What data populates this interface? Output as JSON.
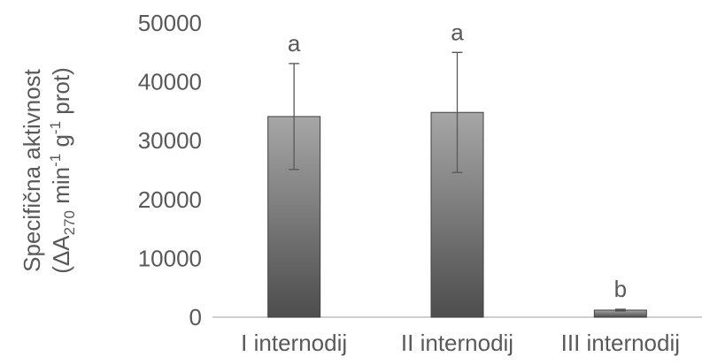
{
  "chart_data": {
    "type": "bar",
    "categories": [
      "I internodij",
      "II internodij",
      "III internodij"
    ],
    "values": [
      34100,
      34800,
      1200
    ],
    "error": [
      9000,
      10200,
      150
    ],
    "significance": [
      "a",
      "a",
      "b"
    ],
    "ylabel": {
      "line1": "Specifična aktivnost",
      "line2_part1": "(ΔA",
      "line2_sub": "270",
      "line2_part2": " min",
      "line2_sup1": "-1",
      "line2_part3": " g",
      "line2_sup2": "-1",
      "line2_part4": " prot)"
    },
    "yticks": [
      "0",
      "10000",
      "20000",
      "30000",
      "40000",
      "50000"
    ],
    "ylim": [
      0,
      50000
    ],
    "grid": false,
    "legend": "none",
    "colors": {
      "bar_top": "#a6a6a6",
      "bar_bottom": "#4d4d4d",
      "bar_stroke": "#404040",
      "axis": "#bfbfbf",
      "text": "#595959",
      "error": "#595959"
    }
  }
}
